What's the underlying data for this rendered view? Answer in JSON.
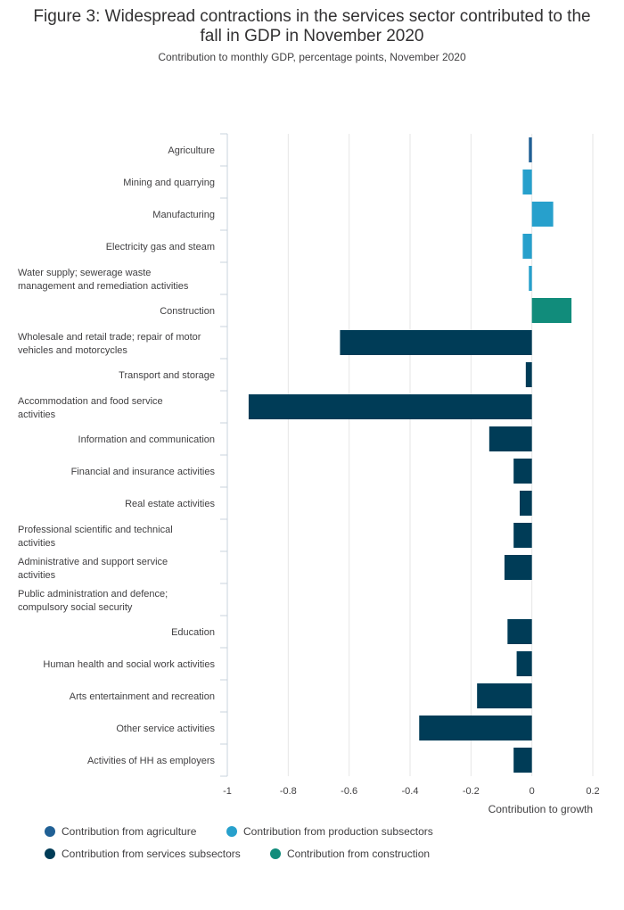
{
  "title_line1": "Figure 3: Widespread contractions in the services sector contributed to the",
  "title_line2": "fall in GDP in November 2020",
  "subtitle": "Contribution to monthly GDP, percentage points, November 2020",
  "colors": {
    "agriculture": "#206095",
    "production": "#27a0cc",
    "services": "#003c57",
    "construction": "#118c7b"
  },
  "chart_data": {
    "type": "bar",
    "orientation": "horizontal",
    "xlabel": "Contribution to growth",
    "xlim": [
      -1,
      0.2
    ],
    "xticks": [
      "-1",
      "-0.8",
      "-0.6",
      "-0.4",
      "-0.2",
      "0",
      "0.2"
    ],
    "xtick_values": [
      -1,
      -0.8,
      -0.6,
      -0.4,
      -0.2,
      0,
      0.2
    ],
    "grid": "vertical",
    "legend_position": "bottom",
    "categories": [
      [
        "Agriculture"
      ],
      [
        "Mining and quarrying"
      ],
      [
        "Manufacturing"
      ],
      [
        "Electricity gas and steam"
      ],
      [
        "Water supply; sewerage waste",
        "management and remediation activities"
      ],
      [
        "Construction"
      ],
      [
        "Wholesale and retail trade; repair of motor",
        "vehicles and motorcycles"
      ],
      [
        "Transport and storage"
      ],
      [
        "Accommodation and food service",
        "activities"
      ],
      [
        "Information and communication"
      ],
      [
        "Financial and insurance activities"
      ],
      [
        "Real estate activities"
      ],
      [
        "Professional scientific and technical",
        "activities"
      ],
      [
        "Administrative and support service",
        "activities"
      ],
      [
        "Public administration and defence;",
        "compulsory social security"
      ],
      [
        "Education"
      ],
      [
        "Human health and social work activities"
      ],
      [
        "Arts entertainment and recreation"
      ],
      [
        "Other service activities"
      ],
      [
        "Activities of HH as employers"
      ]
    ],
    "values": [
      -0.01,
      -0.03,
      0.07,
      -0.03,
      -0.01,
      0.13,
      -0.63,
      -0.02,
      -0.93,
      -0.14,
      -0.06,
      -0.04,
      -0.06,
      -0.09,
      0.0,
      -0.08,
      -0.05,
      -0.18,
      -0.37,
      -0.06
    ],
    "groups": [
      "agriculture",
      "production",
      "production",
      "production",
      "production",
      "construction",
      "services",
      "services",
      "services",
      "services",
      "services",
      "services",
      "services",
      "services",
      "services",
      "services",
      "services",
      "services",
      "services",
      "services"
    ],
    "series": [
      {
        "key": "agriculture",
        "name": "Contribution from agriculture"
      },
      {
        "key": "production",
        "name": "Contribution from production subsectors"
      },
      {
        "key": "services",
        "name": "Contribution from services subsectors"
      },
      {
        "key": "construction",
        "name": "Contribution from construction"
      }
    ]
  }
}
